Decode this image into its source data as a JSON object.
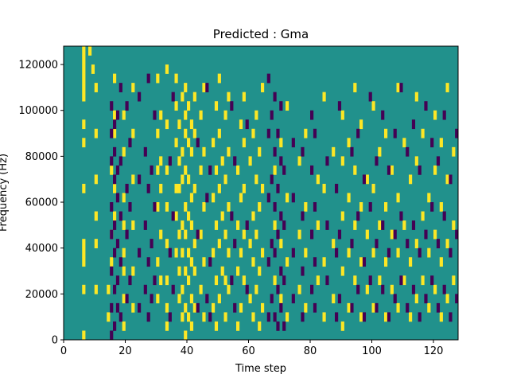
{
  "chart_data": {
    "type": "heatmap",
    "title": "Predicted : Gma",
    "xlabel": "Time step",
    "ylabel": "Frequency (Hz)",
    "xlim": [
      0,
      128
    ],
    "ylim": [
      0,
      128000
    ],
    "x_ticks": [
      0,
      20,
      40,
      60,
      80,
      100,
      120
    ],
    "x_tick_labels": [
      "0",
      "20",
      "40",
      "60",
      "80",
      "100",
      "120"
    ],
    "y_ticks": [
      0,
      20000,
      40000,
      60000,
      80000,
      100000,
      120000
    ],
    "y_tick_labels": [
      "0",
      "20000",
      "40000",
      "60000",
      "80000",
      "100000",
      "120000"
    ],
    "grid": false,
    "colormap": "viridis",
    "levels": {
      "low": -1,
      "mid": 0,
      "high": 1
    },
    "colors": {
      "low": "#440154",
      "mid": "#21918c",
      "high": "#fde725"
    },
    "background_level": 0,
    "high_cells": [
      [
        6,
        0
      ],
      [
        6,
        5
      ],
      [
        6,
        8
      ],
      [
        6,
        9
      ],
      [
        6,
        10
      ],
      [
        6,
        16
      ],
      [
        6,
        21
      ],
      [
        6,
        23
      ],
      [
        6,
        26
      ],
      [
        6,
        27
      ],
      [
        6,
        28
      ],
      [
        6,
        29
      ],
      [
        6,
        30
      ],
      [
        6,
        31
      ],
      [
        8,
        31
      ],
      [
        9,
        29
      ],
      [
        10,
        27
      ],
      [
        10,
        22
      ],
      [
        10,
        17
      ],
      [
        10,
        13
      ],
      [
        10,
        10
      ],
      [
        10,
        5
      ],
      [
        14,
        2
      ],
      [
        14,
        5
      ],
      [
        15,
        8
      ],
      [
        15,
        11
      ],
      [
        15,
        18
      ],
      [
        16,
        13
      ],
      [
        16,
        16
      ],
      [
        16,
        22
      ],
      [
        16,
        24
      ],
      [
        16,
        28
      ],
      [
        19,
        1
      ],
      [
        19,
        4
      ],
      [
        19,
        7
      ],
      [
        19,
        9
      ],
      [
        19,
        12
      ],
      [
        19,
        15
      ],
      [
        19,
        20
      ],
      [
        19,
        24
      ],
      [
        22,
        3
      ],
      [
        22,
        7
      ],
      [
        22,
        12
      ],
      [
        22,
        17
      ],
      [
        22,
        22
      ],
      [
        22,
        27
      ],
      [
        30,
        4
      ],
      [
        30,
        8
      ],
      [
        30,
        14
      ],
      [
        30,
        18
      ],
      [
        30,
        22
      ],
      [
        30,
        28
      ],
      [
        31,
        6
      ],
      [
        31,
        11
      ],
      [
        31,
        16
      ],
      [
        31,
        19
      ],
      [
        31,
        24
      ],
      [
        33,
        1
      ],
      [
        33,
        3
      ],
      [
        33,
        6
      ],
      [
        33,
        10
      ],
      [
        33,
        14
      ],
      [
        33,
        18
      ],
      [
        33,
        23
      ],
      [
        33,
        29
      ],
      [
        36,
        9
      ],
      [
        36,
        13
      ],
      [
        36,
        16
      ],
      [
        36,
        21
      ],
      [
        36,
        25
      ],
      [
        36,
        28
      ],
      [
        37,
        4
      ],
      [
        37,
        7
      ],
      [
        37,
        11
      ],
      [
        37,
        16
      ],
      [
        37,
        19
      ],
      [
        37,
        23
      ],
      [
        38,
        2
      ],
      [
        38,
        5
      ],
      [
        38,
        9
      ],
      [
        38,
        12
      ],
      [
        38,
        17
      ],
      [
        38,
        20
      ],
      [
        38,
        26
      ],
      [
        39,
        0
      ],
      [
        39,
        3
      ],
      [
        39,
        7
      ],
      [
        39,
        11
      ],
      [
        39,
        14
      ],
      [
        39,
        18
      ],
      [
        39,
        22
      ],
      [
        39,
        24
      ],
      [
        39,
        27
      ],
      [
        40,
        2
      ],
      [
        40,
        6
      ],
      [
        40,
        9
      ],
      [
        40,
        13
      ],
      [
        40,
        17
      ],
      [
        40,
        21
      ],
      [
        40,
        25
      ],
      [
        41,
        1
      ],
      [
        41,
        4
      ],
      [
        41,
        8
      ],
      [
        41,
        12
      ],
      [
        41,
        15
      ],
      [
        41,
        20
      ],
      [
        41,
        23
      ],
      [
        42,
        3
      ],
      [
        42,
        7
      ],
      [
        42,
        10
      ],
      [
        42,
        16
      ],
      [
        42,
        22
      ],
      [
        42,
        26
      ],
      [
        44,
        5
      ],
      [
        44,
        11
      ],
      [
        44,
        18
      ],
      [
        44,
        24
      ],
      [
        45,
        2
      ],
      [
        45,
        8
      ],
      [
        45,
        14
      ],
      [
        45,
        20
      ],
      [
        45,
        27
      ],
      [
        48,
        3
      ],
      [
        48,
        9
      ],
      [
        48,
        15
      ],
      [
        48,
        21
      ],
      [
        49,
        1
      ],
      [
        49,
        6
      ],
      [
        49,
        12
      ],
      [
        49,
        18
      ],
      [
        49,
        25
      ],
      [
        50,
        4
      ],
      [
        50,
        10
      ],
      [
        50,
        16
      ],
      [
        50,
        22
      ],
      [
        50,
        28
      ],
      [
        51,
        7
      ],
      [
        51,
        13
      ],
      [
        51,
        19
      ],
      [
        52,
        2
      ],
      [
        52,
        6
      ],
      [
        52,
        11
      ],
      [
        52,
        17
      ],
      [
        52,
        24
      ],
      [
        53,
        5
      ],
      [
        53,
        9
      ],
      [
        53,
        14
      ],
      [
        53,
        20
      ],
      [
        53,
        26
      ],
      [
        56,
        1
      ],
      [
        56,
        7
      ],
      [
        56,
        12
      ],
      [
        56,
        18
      ],
      [
        57,
        3
      ],
      [
        57,
        9
      ],
      [
        57,
        15
      ],
      [
        57,
        23
      ],
      [
        58,
        6
      ],
      [
        58,
        11
      ],
      [
        58,
        16
      ],
      [
        58,
        21
      ],
      [
        58,
        26
      ],
      [
        60,
        4
      ],
      [
        60,
        10
      ],
      [
        60,
        19
      ],
      [
        61,
        2
      ],
      [
        61,
        8
      ],
      [
        61,
        13
      ],
      [
        61,
        22
      ],
      [
        62,
        5
      ],
      [
        62,
        11
      ],
      [
        62,
        17
      ],
      [
        62,
        24
      ],
      [
        63,
        1
      ],
      [
        63,
        7
      ],
      [
        63,
        14
      ],
      [
        63,
        20
      ],
      [
        64,
        3
      ],
      [
        64,
        9
      ],
      [
        64,
        16
      ],
      [
        64,
        27
      ],
      [
        68,
        6
      ],
      [
        68,
        12
      ],
      [
        68,
        18
      ],
      [
        70,
        4
      ],
      [
        70,
        10
      ],
      [
        70,
        21
      ],
      [
        72,
        2
      ],
      [
        72,
        8
      ],
      [
        72,
        15
      ],
      [
        72,
        25
      ],
      [
        76,
        5
      ],
      [
        76,
        11
      ],
      [
        76,
        19
      ],
      [
        78,
        3
      ],
      [
        78,
        9
      ],
      [
        78,
        14
      ],
      [
        78,
        22
      ],
      [
        82,
        6
      ],
      [
        82,
        12
      ],
      [
        82,
        17
      ],
      [
        84,
        2
      ],
      [
        84,
        8
      ],
      [
        84,
        16
      ],
      [
        84,
        26
      ],
      [
        87,
        4
      ],
      [
        87,
        10
      ],
      [
        87,
        20
      ],
      [
        90,
        1
      ],
      [
        90,
        7
      ],
      [
        90,
        13
      ],
      [
        90,
        19
      ],
      [
        90,
        24
      ],
      [
        92,
        3
      ],
      [
        92,
        9
      ],
      [
        92,
        15
      ],
      [
        92,
        21
      ],
      [
        94,
        6
      ],
      [
        94,
        12
      ],
      [
        94,
        18
      ],
      [
        94,
        27
      ],
      [
        96,
        2
      ],
      [
        96,
        8
      ],
      [
        96,
        14
      ],
      [
        96,
        23
      ],
      [
        98,
        5
      ],
      [
        98,
        11
      ],
      [
        98,
        17
      ],
      [
        100,
        3
      ],
      [
        100,
        9
      ],
      [
        100,
        16
      ],
      [
        100,
        25
      ],
      [
        102,
        6
      ],
      [
        102,
        12
      ],
      [
        102,
        20
      ],
      [
        104,
        2
      ],
      [
        104,
        8
      ],
      [
        104,
        14
      ],
      [
        104,
        22
      ],
      [
        106,
        5
      ],
      [
        106,
        11
      ],
      [
        106,
        18
      ],
      [
        108,
        3
      ],
      [
        108,
        9
      ],
      [
        108,
        15
      ],
      [
        108,
        27
      ],
      [
        110,
        6
      ],
      [
        110,
        12
      ],
      [
        110,
        21
      ],
      [
        112,
        2
      ],
      [
        112,
        8
      ],
      [
        112,
        17
      ],
      [
        114,
        4
      ],
      [
        114,
        10
      ],
      [
        114,
        19
      ],
      [
        114,
        26
      ],
      [
        116,
        6
      ],
      [
        116,
        13
      ],
      [
        116,
        22
      ],
      [
        118,
        3
      ],
      [
        118,
        9
      ],
      [
        118,
        15
      ],
      [
        120,
        5
      ],
      [
        120,
        11
      ],
      [
        120,
        18
      ],
      [
        120,
        24
      ],
      [
        122,
        2
      ],
      [
        122,
        8
      ],
      [
        122,
        14
      ],
      [
        122,
        21
      ],
      [
        124,
        4
      ],
      [
        124,
        10
      ],
      [
        124,
        17
      ],
      [
        124,
        27
      ],
      [
        126,
        6
      ],
      [
        126,
        12
      ],
      [
        126,
        20
      ]
    ],
    "low_cells": [
      [
        15,
        0
      ],
      [
        15,
        3
      ],
      [
        15,
        7
      ],
      [
        15,
        11
      ],
      [
        15,
        14
      ],
      [
        15,
        19
      ],
      [
        15,
        22
      ],
      [
        15,
        25
      ],
      [
        16,
        1
      ],
      [
        16,
        5
      ],
      [
        16,
        9
      ],
      [
        16,
        12
      ],
      [
        16,
        17
      ],
      [
        16,
        20
      ],
      [
        16,
        23
      ],
      [
        17,
        3
      ],
      [
        17,
        6
      ],
      [
        17,
        10
      ],
      [
        17,
        15
      ],
      [
        17,
        18
      ],
      [
        17,
        24
      ],
      [
        18,
        2
      ],
      [
        18,
        8
      ],
      [
        18,
        13
      ],
      [
        18,
        19
      ],
      [
        18,
        27
      ],
      [
        20,
        4
      ],
      [
        20,
        11
      ],
      [
        20,
        16
      ],
      [
        20,
        25
      ],
      [
        21,
        6
      ],
      [
        21,
        14
      ],
      [
        21,
        21
      ],
      [
        24,
        3
      ],
      [
        24,
        9
      ],
      [
        24,
        17
      ],
      [
        24,
        26
      ],
      [
        26,
        5
      ],
      [
        26,
        12
      ],
      [
        26,
        20
      ],
      [
        27,
        2
      ],
      [
        27,
        8
      ],
      [
        27,
        16
      ],
      [
        27,
        28
      ],
      [
        28,
        4
      ],
      [
        28,
        10
      ],
      [
        28,
        18
      ],
      [
        29,
        6
      ],
      [
        29,
        14
      ],
      [
        29,
        24
      ],
      [
        34,
        2
      ],
      [
        34,
        9
      ],
      [
        34,
        19
      ],
      [
        35,
        5
      ],
      [
        35,
        13
      ],
      [
        35,
        26
      ],
      [
        43,
        3
      ],
      [
        43,
        11
      ],
      [
        43,
        21
      ],
      [
        46,
        4
      ],
      [
        46,
        15
      ],
      [
        46,
        27
      ],
      [
        47,
        2
      ],
      [
        47,
        8
      ],
      [
        47,
        18
      ],
      [
        54,
        6
      ],
      [
        54,
        13
      ],
      [
        54,
        25
      ],
      [
        55,
        3
      ],
      [
        55,
        10
      ],
      [
        55,
        19
      ],
      [
        59,
        5
      ],
      [
        59,
        12
      ],
      [
        59,
        23
      ],
      [
        66,
        2
      ],
      [
        66,
        8
      ],
      [
        66,
        15
      ],
      [
        66,
        22
      ],
      [
        66,
        28
      ],
      [
        67,
        4
      ],
      [
        67,
        10
      ],
      [
        67,
        17
      ],
      [
        67,
        24
      ],
      [
        68,
        2
      ],
      [
        68,
        9
      ],
      [
        68,
        14
      ],
      [
        68,
        20
      ],
      [
        68,
        26
      ],
      [
        69,
        1
      ],
      [
        69,
        5
      ],
      [
        69,
        11
      ],
      [
        69,
        16
      ],
      [
        69,
        22
      ],
      [
        70,
        3
      ],
      [
        70,
        7
      ],
      [
        70,
        13
      ],
      [
        70,
        19
      ],
      [
        70,
        25
      ],
      [
        71,
        1
      ],
      [
        71,
        6
      ],
      [
        71,
        12
      ],
      [
        71,
        18
      ],
      [
        74,
        4
      ],
      [
        74,
        9
      ],
      [
        74,
        15
      ],
      [
        74,
        21
      ],
      [
        77,
        2
      ],
      [
        77,
        7
      ],
      [
        77,
        13
      ],
      [
        77,
        20
      ],
      [
        80,
        5
      ],
      [
        80,
        11
      ],
      [
        80,
        18
      ],
      [
        80,
        24
      ],
      [
        81,
        3
      ],
      [
        81,
        8
      ],
      [
        81,
        14
      ],
      [
        81,
        22
      ],
      [
        85,
        6
      ],
      [
        85,
        12
      ],
      [
        85,
        19
      ],
      [
        88,
        2
      ],
      [
        88,
        9
      ],
      [
        88,
        16
      ],
      [
        89,
        4
      ],
      [
        89,
        11
      ],
      [
        89,
        25
      ],
      [
        93,
        3
      ],
      [
        93,
        10
      ],
      [
        93,
        20
      ],
      [
        95,
        5
      ],
      [
        95,
        13
      ],
      [
        95,
        22
      ],
      [
        97,
        2
      ],
      [
        97,
        8
      ],
      [
        97,
        17
      ],
      [
        99,
        6
      ],
      [
        99,
        14
      ],
      [
        99,
        26
      ],
      [
        101,
        3
      ],
      [
        101,
        10
      ],
      [
        101,
        19
      ],
      [
        103,
        5
      ],
      [
        103,
        12
      ],
      [
        103,
        24
      ],
      [
        105,
        2
      ],
      [
        105,
        9
      ],
      [
        105,
        18
      ],
      [
        107,
        4
      ],
      [
        107,
        11
      ],
      [
        107,
        22
      ],
      [
        109,
        6
      ],
      [
        109,
        13
      ],
      [
        109,
        27
      ],
      [
        111,
        3
      ],
      [
        111,
        10
      ],
      [
        111,
        20
      ],
      [
        113,
        5
      ],
      [
        113,
        12
      ],
      [
        113,
        23
      ],
      [
        115,
        2
      ],
      [
        115,
        9
      ],
      [
        115,
        18
      ],
      [
        117,
        4
      ],
      [
        117,
        11
      ],
      [
        117,
        25
      ],
      [
        119,
        6
      ],
      [
        119,
        14
      ],
      [
        119,
        21
      ],
      [
        121,
        3
      ],
      [
        121,
        10
      ],
      [
        121,
        19
      ],
      [
        123,
        5
      ],
      [
        123,
        13
      ],
      [
        123,
        24
      ],
      [
        125,
        2
      ],
      [
        125,
        9
      ],
      [
        125,
        17
      ],
      [
        127,
        4
      ],
      [
        127,
        11
      ],
      [
        127,
        22
      ]
    ]
  }
}
